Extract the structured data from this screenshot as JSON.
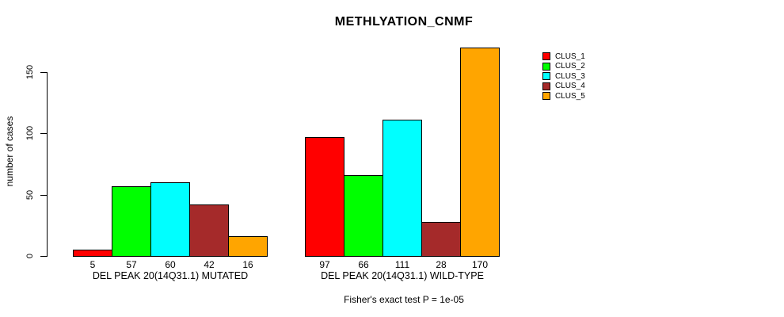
{
  "chart_data": {
    "type": "bar",
    "title": "METHLYATION_CNMF",
    "ylabel": "number of cases",
    "footnote": "Fisher's exact test P = 1e-05",
    "yticks": [
      0,
      50,
      100,
      150
    ],
    "ylim": [
      0,
      170
    ],
    "grid": false,
    "legend_position": "right-inside",
    "categories": [
      "DEL PEAK 20(14Q31.1) MUTATED",
      "DEL PEAK 20(14Q31.1) WILD-TYPE"
    ],
    "series": [
      {
        "name": "CLUS_1",
        "color": "#FF0000",
        "values": [
          5,
          97
        ]
      },
      {
        "name": "CLUS_2",
        "color": "#00FF00",
        "values": [
          57,
          66
        ]
      },
      {
        "name": "CLUS_3",
        "color": "#00FFFF",
        "values": [
          60,
          111
        ]
      },
      {
        "name": "CLUS_4",
        "color": "#A52A2A",
        "values": [
          42,
          28
        ]
      },
      {
        "name": "CLUS_5",
        "color": "#FFA500",
        "values": [
          16,
          170
        ]
      }
    ],
    "bar_value_labels_shown": true,
    "axis_color": "#000000",
    "background_color": "#FFFFFF"
  }
}
